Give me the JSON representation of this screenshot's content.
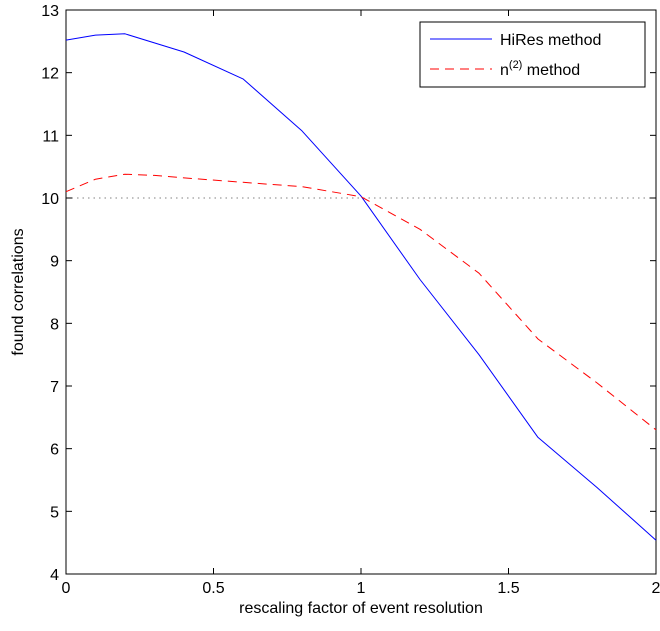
{
  "chart_data": {
    "type": "line",
    "title": "",
    "xlabel": "rescaling factor of event resolution",
    "ylabel": "found correlations",
    "xlim": [
      0,
      2
    ],
    "ylim": [
      4,
      13
    ],
    "xticks": [
      0,
      0.5,
      1,
      1.5,
      2
    ],
    "xtick_labels": [
      "0",
      "0.5",
      "1",
      "1.5",
      "2"
    ],
    "yticks": [
      4,
      5,
      6,
      7,
      8,
      9,
      10,
      11,
      12,
      13
    ],
    "ytick_labels": [
      "4",
      "5",
      "6",
      "7",
      "8",
      "9",
      "10",
      "11",
      "12",
      "13"
    ],
    "grid": false,
    "legend_position": "top-right",
    "reference_line": {
      "y": 10,
      "style": "dotted",
      "color": "#808080"
    },
    "series": [
      {
        "name": "HiRes method",
        "color": "#0000ff",
        "style": "solid",
        "x": [
          0,
          0.1,
          0.2,
          0.4,
          0.6,
          0.8,
          1.0,
          1.2,
          1.4,
          1.6,
          1.8,
          2.0
        ],
        "y": [
          12.52,
          12.6,
          12.62,
          12.33,
          11.9,
          11.07,
          10.03,
          8.7,
          7.5,
          6.18,
          5.38,
          4.54
        ]
      },
      {
        "name": "n(2) method",
        "name_base": "n",
        "name_sup": "(2)",
        "name_suffix": " method",
        "color": "#ff0000",
        "style": "dashed",
        "x": [
          0,
          0.1,
          0.2,
          0.3,
          0.4,
          0.6,
          0.8,
          1.0,
          1.2,
          1.4,
          1.6,
          1.8,
          2.0
        ],
        "y": [
          10.1,
          10.3,
          10.38,
          10.36,
          10.32,
          10.25,
          10.18,
          10.02,
          9.5,
          8.8,
          7.75,
          7.05,
          6.3
        ]
      }
    ]
  }
}
